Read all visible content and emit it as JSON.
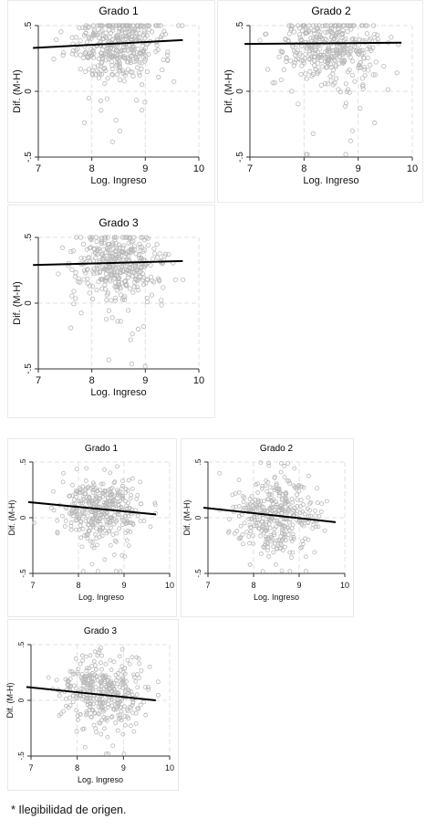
{
  "note": "* Ilegibilidad de origen.",
  "chart_data": [
    {
      "type": "scatter",
      "group": "top",
      "title": "Grado 1",
      "xlabel": "Log. Ingreso",
      "ylabel": "Dif. (M-H)",
      "xlim": [
        7,
        10
      ],
      "ylim": [
        -0.5,
        0.5
      ],
      "xticks": [
        "7",
        "8",
        "9",
        "10"
      ],
      "yticks": [
        ".5",
        "0",
        "-.5"
      ],
      "trend": [
        [
          6.9,
          0.33
        ],
        [
          9.7,
          0.39
        ]
      ],
      "points_note": "approx. 400 points",
      "grid": true,
      "cloud": {
        "cx": 8.5,
        "cy": 0.35,
        "sx": 0.55,
        "sy": 0.12
      }
    },
    {
      "type": "scatter",
      "group": "top",
      "title": "Grado 2",
      "xlabel": "Log. Ingreso",
      "ylabel": "Dif. (M-H)",
      "xlim": [
        7,
        10
      ],
      "ylim": [
        -0.5,
        0.5
      ],
      "xticks": [
        "7",
        "8",
        "9",
        "10"
      ],
      "yticks": [
        ".5",
        "0",
        "-.5"
      ],
      "trend": [
        [
          6.9,
          0.36
        ],
        [
          9.8,
          0.37
        ]
      ],
      "grid": true,
      "cloud": {
        "cx": 8.5,
        "cy": 0.33,
        "sx": 0.55,
        "sy": 0.14
      }
    },
    {
      "type": "scatter",
      "group": "top",
      "title": "Grado 3",
      "xlabel": "Log. Ingreso",
      "ylabel": "Dif. (M-H)",
      "xlim": [
        7,
        10
      ],
      "ylim": [
        -0.5,
        0.5
      ],
      "xticks": [
        "7",
        "8",
        "9",
        "10"
      ],
      "yticks": [
        ".5",
        "0",
        "-.5"
      ],
      "trend": [
        [
          6.9,
          0.29
        ],
        [
          9.7,
          0.32
        ]
      ],
      "grid": true,
      "cloud": {
        "cx": 8.5,
        "cy": 0.3,
        "sx": 0.55,
        "sy": 0.13
      }
    },
    {
      "type": "scatter",
      "group": "bottom",
      "title": "Grado 1",
      "xlabel": "Log. Ingreso",
      "ylabel": "Dif. (M-H)",
      "xlim": [
        7,
        10
      ],
      "ylim": [
        -0.5,
        0.5
      ],
      "xticks": [
        "7",
        "8",
        "9",
        "10"
      ],
      "yticks": [
        ".5",
        "0",
        "-.5"
      ],
      "trend": [
        [
          6.9,
          0.14
        ],
        [
          9.7,
          0.03
        ]
      ],
      "grid": true,
      "cloud": {
        "cx": 8.5,
        "cy": 0.08,
        "sx": 0.55,
        "sy": 0.14
      }
    },
    {
      "type": "scatter",
      "group": "bottom",
      "title": "Grado 2",
      "xlabel": "Log. Ingreso",
      "ylabel": "Dif. (M-H)",
      "xlim": [
        7,
        10
      ],
      "ylim": [
        -0.5,
        0.5
      ],
      "xticks": [
        "7",
        "8",
        "9",
        "10"
      ],
      "yticks": [
        ".5",
        "0",
        "-.5"
      ],
      "trend": [
        [
          6.9,
          0.09
        ],
        [
          9.8,
          -0.04
        ]
      ],
      "grid": true,
      "cloud": {
        "cx": 8.5,
        "cy": 0.03,
        "sx": 0.55,
        "sy": 0.16
      }
    },
    {
      "type": "scatter",
      "group": "bottom",
      "title": "Grado 3",
      "xlabel": "Log. Ingreso",
      "ylabel": "Dif. (M-H)",
      "xlim": [
        7,
        10
      ],
      "ylim": [
        -0.5,
        0.5
      ],
      "xticks": [
        "7",
        "8",
        "9",
        "10"
      ],
      "yticks": [
        ".5",
        "0",
        "-.5"
      ],
      "trend": [
        [
          6.9,
          0.12
        ],
        [
          9.7,
          0.0
        ]
      ],
      "grid": true,
      "cloud": {
        "cx": 8.5,
        "cy": 0.07,
        "sx": 0.55,
        "sy": 0.14
      }
    }
  ]
}
